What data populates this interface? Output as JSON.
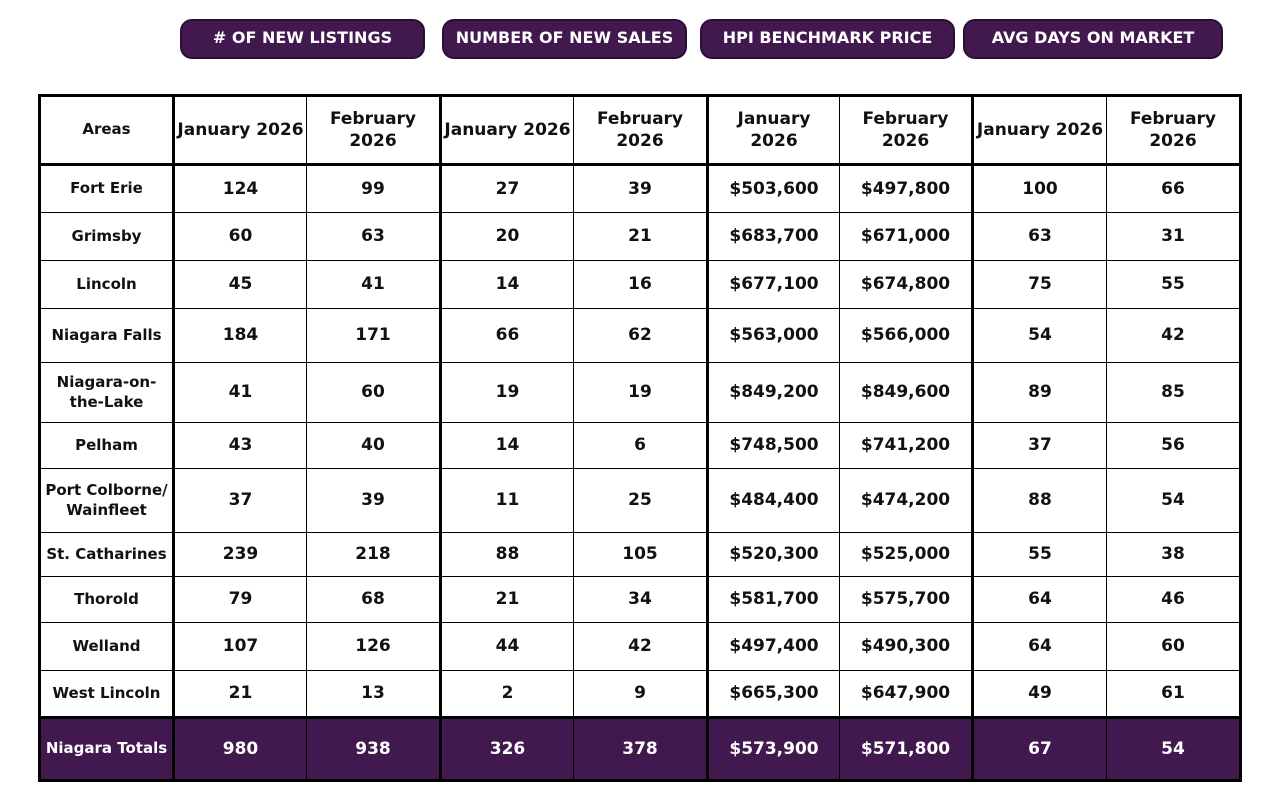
{
  "tabs": [
    "# OF NEW LISTINGS",
    "NUMBER OF NEW SALES",
    "HPI BENCHMARK PRICE",
    "AVG DAYS ON MARKET"
  ],
  "table": {
    "header": [
      "Areas",
      "January 2026",
      "February 2026",
      "January 2026",
      "February 2026",
      "January 2026",
      "February 2026",
      "January 2026",
      "February 2026"
    ],
    "rows": [
      [
        "Fort Erie",
        "124",
        "99",
        "27",
        "39",
        "$503,600",
        "$497,800",
        "100",
        "66"
      ],
      [
        "Grimsby",
        "60",
        "63",
        "20",
        "21",
        "$683,700",
        "$671,000",
        "63",
        "31"
      ],
      [
        "Lincoln",
        "45",
        "41",
        "14",
        "16",
        "$677,100",
        "$674,800",
        "75",
        "55"
      ],
      [
        "Niagara Falls",
        "184",
        "171",
        "66",
        "62",
        "$563,000",
        "$566,000",
        "54",
        "42"
      ],
      [
        "Niagara-on-the-Lake",
        "41",
        "60",
        "19",
        "19",
        "$849,200",
        "$849,600",
        "89",
        "85"
      ],
      [
        "Pelham",
        "43",
        "40",
        "14",
        "6",
        "$748,500",
        "$741,200",
        "37",
        "56"
      ],
      [
        "Port Colborne/ Wainfleet",
        "37",
        "39",
        "11",
        "25",
        "$484,400",
        "$474,200",
        "88",
        "54"
      ],
      [
        "St. Catharines",
        "239",
        "218",
        "88",
        "105",
        "$520,300",
        "$525,000",
        "55",
        "38"
      ],
      [
        "Thorold",
        "79",
        "68",
        "21",
        "34",
        "$581,700",
        "$575,700",
        "64",
        "46"
      ],
      [
        "Welland",
        "107",
        "126",
        "44",
        "42",
        "$497,400",
        "$490,300",
        "64",
        "60"
      ],
      [
        "West Lincoln",
        "21",
        "13",
        "2",
        "9",
        "$665,300",
        "$647,900",
        "49",
        "61"
      ]
    ],
    "totals": [
      "Niagara Totals",
      "980",
      "938",
      "326",
      "378",
      "$573,900",
      "$571,800",
      "67",
      "54"
    ]
  }
}
